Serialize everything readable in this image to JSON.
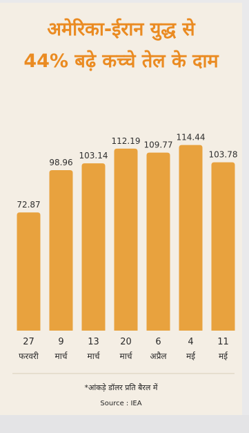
{
  "title": {
    "line1": "अमेरिका-ईरान युद्ध से",
    "line2": "44% बढ़े कच्चे तेल के दाम"
  },
  "footnote": "*आंकड़े डॉलर प्रति बैरल में",
  "source": "Source : IEA",
  "colors": {
    "bar": "#e8a23e",
    "title": "#ea8b22",
    "background": "#f4eee4"
  },
  "chart_data": {
    "type": "bar",
    "categories": [
      "27 फरवरी",
      "9 मार्च",
      "13 मार्च",
      "20 मार्च",
      "6 अप्रैल",
      "4 मई",
      "11 मई"
    ],
    "category_lines": [
      [
        "27",
        "फरवरी"
      ],
      [
        "9",
        "मार्च"
      ],
      [
        "13",
        "मार्च"
      ],
      [
        "20",
        "मार्च"
      ],
      [
        "6",
        "अप्रैल"
      ],
      [
        "4",
        "मई"
      ],
      [
        "11",
        "मई"
      ]
    ],
    "values": [
      72.87,
      98.96,
      103.14,
      112.19,
      109.77,
      114.44,
      103.78
    ],
    "value_labels": [
      "72.87",
      "98.96",
      "103.14",
      "112.19",
      "109.77",
      "114.44",
      "103.78"
    ],
    "title": "अमेरिका-ईरान युद्ध से 44% बढ़े कच्चे तेल के दाम",
    "xlabel": "",
    "ylabel": "",
    "ylim": [
      0,
      115
    ],
    "grid": false,
    "legend": "none"
  }
}
